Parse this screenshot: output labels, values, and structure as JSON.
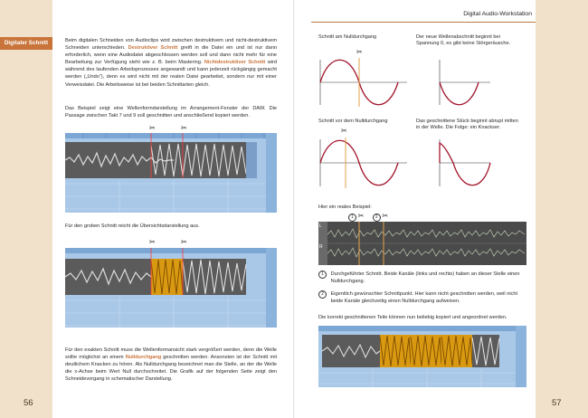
{
  "header": {
    "title": "Digital Audio-Workstation"
  },
  "sidebar": {
    "tab_label": "Digitaler Schnitt"
  },
  "pages": {
    "left_number": "56",
    "right_number": "57"
  },
  "left": {
    "para1_a": "Beim digitalen Schneiden von Audioclips wird zwischen destruktivem und nicht-destruktivem Schneiden unterschieden. ",
    "term1": "Destruktiver Schnitt",
    "para1_b": " greift in die Datei ein und ist nur dann erforderlich, wenn eine Audiodatei abgeschlossen werden soll und dann nicht mehr für eine Bearbeitung zur Verfügung steht wie z. B. beim Mastering. ",
    "term2": "Nichtdestruktiver Schnitt",
    "para1_c": " wird während des laufenden Arbeitsprozesses angewandt und kann jederzeit rückgängig gemacht werden („Undo“), denn es wird nicht mit der realen Datei gearbeitet, sondern nur mit einer Verweisdatei. Die Arbeitsweise ist bei beiden Schnittarten gleich.",
    "para2": "Das Beispiel zeigt eine Wellenformdarstellung im Arrangement-Fenster der DAW. Die Passage zwischen Takt 7 und 9 soll geschnitten und anschließend kopiert werden.",
    "para3": "Für den groben Schnitt reicht die Übersichtsdarstellung aus.",
    "para4_a": "Für den exakten Schnitt muss die Wellenformansicht stark vergrößert werden, denn die Welle sollte möglichst an einem ",
    "term3": "Nulldurchgang",
    "para4_b": " geschnitten werden. Ansonsten ist der Schnitt mit deutlichem Knacken zu hören. Als Nulldurchgang bezeichnet man die Stelle, an der die Welle die x-Achse beim Wert Null durchschreitet. Die Grafik auf der folgenden Seite zeigt den Schneidevorgang in schematischer Darstellung."
  },
  "right": {
    "cap1": "Schnitt am Nulldurchgang",
    "cap2": "Der neue Wellenabschnitt beginnt bei Spannung 0, es gibt keine Störgeräusche.",
    "cap3": "Schnitt vor dem Nulldurchgang",
    "cap4": "Das geschnittene Stück beginnt abrupt mitten in der Welle. Die Folge: ein Knackser.",
    "cap5": "Hier ein reales Beispiel:",
    "marker1": "1",
    "marker2": "2",
    "channel_l": "L",
    "channel_r": "R",
    "note1": "Durchgeführter Schnitt. Beide Kanäle (links und rechts) haben an dieser Stelle einen Nulldurchgang.",
    "note2": "Eigentlich gewünschter Schnittpunkt. Hier kann nicht geschnitten werden, weil nicht beide Kanäle gleichzeitig einen Nulldurchgang aufweisen.",
    "para5": "Die korrekt geschnittenen Teile können nun beliebig kopiert und angeordnet werden."
  },
  "icons": {
    "scissors": "✂"
  },
  "colors": {
    "accent": "#c8743a",
    "margin": "#f1e1ca",
    "daw_blue": "#9bbde0",
    "clip_gold": "#d99a12",
    "waveform_bg": "#6e6e6e"
  }
}
